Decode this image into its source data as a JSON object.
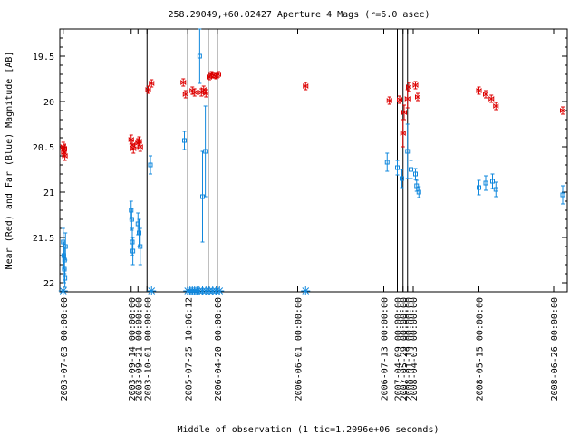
{
  "chart_data": {
    "type": "scatter",
    "title": "258.29049,+60.02427   Aperture 4 Mags (r=6.0 asec)",
    "xlabel": "Middle of observation (1 tic=1.2096e+06 seconds)",
    "ylabel": "Near (Red) and Far (Blue) Magnitude [AB]",
    "ylim": [
      22.1,
      19.2
    ],
    "y_ticks": [
      19.5,
      20,
      20.5,
      21,
      21.5,
      22
    ],
    "y_tick_labels": [
      "19.5",
      "20",
      "20.5",
      "21",
      "21.5",
      "22"
    ],
    "x_ticks": [
      {
        "label": "2003-07-03 00:00:00",
        "t": 0.0
      },
      {
        "label": "2003-09-14 00:00:00",
        "t": 6.0
      },
      {
        "label": "2003-09-21 00:00:00",
        "t": 6.6
      },
      {
        "label": "2003-10-01 00:00:00",
        "t": 7.4
      },
      {
        "label": "2005-07-25 10:06:12",
        "t": 11.0
      },
      {
        "label": "2006-04-20 00:00:00",
        "t": 13.6
      },
      {
        "label": "2006-06-01 00:00:00",
        "t": 20.7
      },
      {
        "label": "2006-07-13 00:00:00",
        "t": 28.3
      },
      {
        "label": "2007-04-09 00:00:00",
        "t": 29.5
      },
      {
        "label": "2007-05-29 00:00:00",
        "t": 30.0
      },
      {
        "label": "2008-01-19 00:00:00",
        "t": 30.4
      },
      {
        "label": "2008-04-03 00:00:00",
        "t": 30.9
      },
      {
        "label": "2008-05-15 00:00:00",
        "t": 36.7
      },
      {
        "label": "2008-06-26 00:00:00",
        "t": 43.3
      }
    ],
    "x_range": [
      -0.3,
      44.5
    ],
    "vertical_lines": [
      7.4,
      11.0,
      12.8,
      13.6,
      29.5,
      30.0,
      30.4
    ],
    "series": [
      {
        "color": "#dd0000",
        "marker": "bowtie",
        "points": [
          {
            "x": 0.0,
            "y": 20.5,
            "e": 0.05
          },
          {
            "x": 0.05,
            "y": 20.56,
            "e": 0.05
          },
          {
            "x": 0.1,
            "y": 20.52,
            "e": 0.05
          },
          {
            "x": 0.15,
            "y": 20.6,
            "e": 0.05
          },
          {
            "x": 6.0,
            "y": 20.42,
            "e": 0.05
          },
          {
            "x": 6.1,
            "y": 20.48,
            "e": 0.05
          },
          {
            "x": 6.2,
            "y": 20.52,
            "e": 0.05
          },
          {
            "x": 6.6,
            "y": 20.46,
            "e": 0.05
          },
          {
            "x": 6.7,
            "y": 20.44,
            "e": 0.05
          },
          {
            "x": 6.8,
            "y": 20.5,
            "e": 0.05
          },
          {
            "x": 7.5,
            "y": 19.87,
            "e": 0.04
          },
          {
            "x": 7.8,
            "y": 19.8,
            "e": 0.04
          },
          {
            "x": 10.6,
            "y": 19.79,
            "e": 0.04
          },
          {
            "x": 10.8,
            "y": 19.92,
            "e": 0.04
          },
          {
            "x": 11.4,
            "y": 19.88,
            "e": 0.04
          },
          {
            "x": 11.6,
            "y": 19.9,
            "e": 0.04
          },
          {
            "x": 12.2,
            "y": 19.9,
            "e": 0.04
          },
          {
            "x": 12.4,
            "y": 19.87,
            "e": 0.04
          },
          {
            "x": 12.6,
            "y": 19.91,
            "e": 0.04
          },
          {
            "x": 12.9,
            "y": 19.73,
            "e": 0.03
          },
          {
            "x": 13.1,
            "y": 19.7,
            "e": 0.03
          },
          {
            "x": 13.3,
            "y": 19.71,
            "e": 0.03
          },
          {
            "x": 13.5,
            "y": 19.72,
            "e": 0.03
          },
          {
            "x": 13.7,
            "y": 19.7,
            "e": 0.03
          },
          {
            "x": 21.4,
            "y": 19.83,
            "e": 0.04
          },
          {
            "x": 28.8,
            "y": 19.99,
            "e": 0.04
          },
          {
            "x": 29.7,
            "y": 19.98,
            "e": 0.04
          },
          {
            "x": 30.0,
            "y": 20.35,
            "e": 0.15
          },
          {
            "x": 30.1,
            "y": 20.12,
            "e": 0.08
          },
          {
            "x": 30.4,
            "y": 19.97,
            "e": 0.1
          },
          {
            "x": 30.5,
            "y": 19.84,
            "e": 0.05
          },
          {
            "x": 31.1,
            "y": 19.82,
            "e": 0.04
          },
          {
            "x": 31.3,
            "y": 19.95,
            "e": 0.04
          },
          {
            "x": 36.7,
            "y": 19.88,
            "e": 0.04
          },
          {
            "x": 37.3,
            "y": 19.92,
            "e": 0.04
          },
          {
            "x": 37.8,
            "y": 19.97,
            "e": 0.04
          },
          {
            "x": 38.2,
            "y": 20.05,
            "e": 0.04
          },
          {
            "x": 44.1,
            "y": 20.1,
            "e": 0.04
          }
        ]
      },
      {
        "color": "#1188dd",
        "marker": "square",
        "points": [
          {
            "x": 0.0,
            "y": 21.55,
            "e": 0.15
          },
          {
            "x": 0.05,
            "y": 21.7,
            "e": 0.15
          },
          {
            "x": 0.1,
            "y": 21.85,
            "e": 0.15
          },
          {
            "x": 0.12,
            "y": 21.75,
            "e": 0.15
          },
          {
            "x": 0.2,
            "y": 21.6,
            "e": 0.15
          },
          {
            "x": 0.15,
            "y": 21.95,
            "e": 0.1
          },
          {
            "x": 6.0,
            "y": 21.2,
            "e": 0.1
          },
          {
            "x": 6.05,
            "y": 21.3,
            "e": 0.12
          },
          {
            "x": 6.1,
            "y": 21.55,
            "e": 0.15
          },
          {
            "x": 6.15,
            "y": 21.65,
            "e": 0.15
          },
          {
            "x": 6.6,
            "y": 21.35,
            "e": 0.12
          },
          {
            "x": 6.7,
            "y": 21.45,
            "e": 0.15
          },
          {
            "x": 6.8,
            "y": 21.6,
            "e": 0.2
          },
          {
            "x": 7.7,
            "y": 20.7,
            "e": 0.1
          },
          {
            "x": 10.7,
            "y": 20.43,
            "e": 0.1
          },
          {
            "x": 12.05,
            "y": 19.5,
            "e": 0.3
          },
          {
            "x": 12.3,
            "y": 21.05,
            "e": 0.5
          },
          {
            "x": 12.55,
            "y": 20.55,
            "e": 0.5
          },
          {
            "x": 28.6,
            "y": 20.67,
            "e": 0.1
          },
          {
            "x": 29.5,
            "y": 20.73,
            "e": 0.08
          },
          {
            "x": 29.9,
            "y": 20.85,
            "e": 0.1
          },
          {
            "x": 30.4,
            "y": 20.55,
            "e": 0.3
          },
          {
            "x": 30.7,
            "y": 20.75,
            "e": 0.1
          },
          {
            "x": 31.1,
            "y": 20.8,
            "e": 0.06
          },
          {
            "x": 31.2,
            "y": 20.93,
            "e": 0.06
          },
          {
            "x": 31.4,
            "y": 21.0,
            "e": 0.06
          },
          {
            "x": 36.7,
            "y": 20.95,
            "e": 0.08
          },
          {
            "x": 37.3,
            "y": 20.9,
            "e": 0.08
          },
          {
            "x": 37.9,
            "y": 20.88,
            "e": 0.08
          },
          {
            "x": 38.2,
            "y": 20.97,
            "e": 0.08
          },
          {
            "x": 44.1,
            "y": 21.03,
            "e": 0.1
          }
        ]
      }
    ],
    "upper_limits": {
      "color": "#1188dd",
      "y": 22.1,
      "x": [
        0.0,
        7.8,
        11.0,
        11.2,
        11.4,
        11.6,
        11.8,
        12.0,
        12.3,
        12.6,
        12.9,
        13.2,
        13.5,
        13.8,
        21.4
      ]
    },
    "grid": false,
    "legend": "none"
  }
}
